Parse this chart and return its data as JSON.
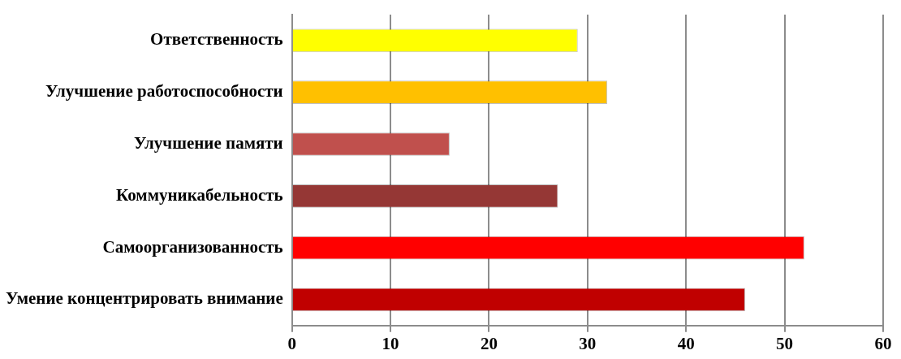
{
  "chart_data": {
    "type": "bar",
    "orientation": "horizontal",
    "categories": [
      "Ответственность",
      "Улучшение работоспособности",
      "Улучшение памяти",
      "Коммуникабельность",
      "Самоорганизованность",
      "Умение концентрировать внимание"
    ],
    "values": [
      29,
      32,
      16,
      27,
      52,
      46
    ],
    "colors": [
      "#ffff00",
      "#ffc000",
      "#c0504d",
      "#953735",
      "#ff0000",
      "#c00000"
    ],
    "xlim": [
      0,
      60
    ],
    "xticks": [
      0,
      10,
      20,
      30,
      40,
      50,
      60
    ],
    "grid": "x",
    "legend": false
  }
}
